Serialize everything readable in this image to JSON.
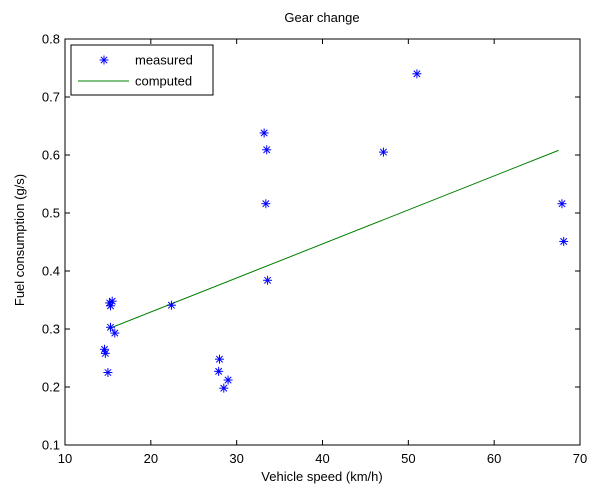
{
  "chart_data": {
    "type": "scatter",
    "title": "Gear change",
    "xlabel": "Vehicle speed (km/h)",
    "ylabel": "Fuel consumption (g/s)",
    "xlim": [
      10,
      70
    ],
    "ylim": [
      0.1,
      0.8
    ],
    "xticks": [
      "10",
      "20",
      "30",
      "40",
      "50",
      "60",
      "70"
    ],
    "yticks": [
      "0.1",
      "0.2",
      "0.3",
      "0.4",
      "0.5",
      "0.6",
      "0.7",
      "0.8"
    ],
    "grid": false,
    "legend_position": "top-left",
    "series": [
      {
        "name": "measured",
        "kind": "markers",
        "marker": "asterisk",
        "color": "#0000ff",
        "points": [
          [
            14.6,
            0.265
          ],
          [
            14.7,
            0.258
          ],
          [
            15.0,
            0.225
          ],
          [
            15.2,
            0.345
          ],
          [
            15.3,
            0.34
          ],
          [
            15.5,
            0.348
          ],
          [
            15.3,
            0.303
          ],
          [
            15.8,
            0.293
          ],
          [
            22.4,
            0.341
          ],
          [
            28.0,
            0.248
          ],
          [
            27.9,
            0.227
          ],
          [
            28.5,
            0.198
          ],
          [
            29.0,
            0.212
          ],
          [
            33.2,
            0.638
          ],
          [
            33.5,
            0.609
          ],
          [
            33.4,
            0.516
          ],
          [
            33.6,
            0.384
          ],
          [
            47.1,
            0.605
          ],
          [
            51.0,
            0.74
          ],
          [
            67.9,
            0.516
          ],
          [
            68.1,
            0.451
          ]
        ]
      },
      {
        "name": "computed",
        "kind": "line",
        "color": "#008000",
        "points": [
          [
            15.0,
            0.3
          ],
          [
            67.5,
            0.608
          ]
        ]
      }
    ]
  }
}
